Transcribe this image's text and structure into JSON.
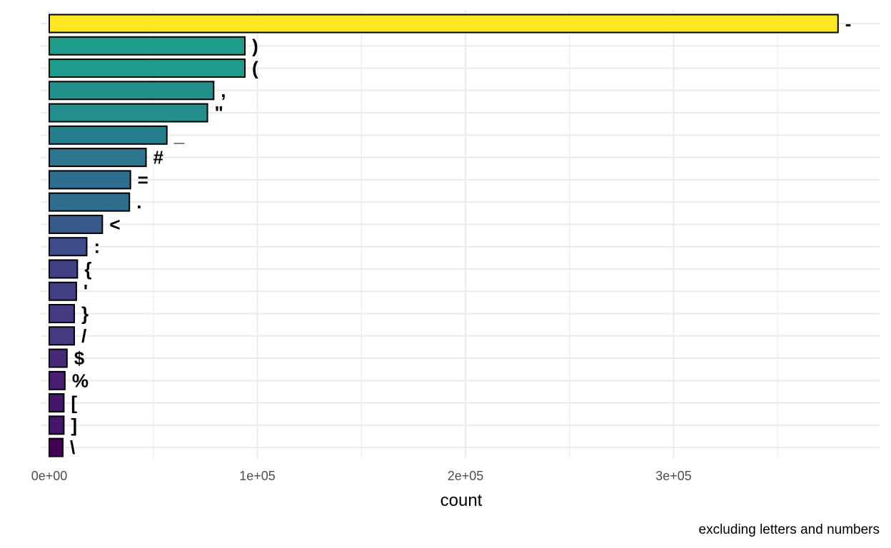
{
  "chart_data": {
    "type": "bar",
    "orientation": "horizontal",
    "categories": [
      "-",
      ")",
      "(",
      ",",
      "\"",
      "_",
      "#",
      "=",
      ".",
      "<",
      ":",
      "{",
      "'",
      "}",
      "/",
      "$",
      "%",
      "[",
      "]",
      "\\"
    ],
    "values": [
      379000,
      94000,
      94000,
      79000,
      76000,
      56500,
      46500,
      39000,
      38500,
      25500,
      18000,
      13500,
      13000,
      12000,
      12000,
      8500,
      7500,
      7000,
      7000,
      6500
    ],
    "xlabel": "count",
    "ylabel": "",
    "caption": "excluding letters and numbers",
    "xlim": [
      0,
      400000
    ],
    "x_ticks": [
      0,
      100000,
      200000,
      300000
    ],
    "x_tick_labels": [
      "0e+00",
      "1e+05",
      "2e+05",
      "3e+05"
    ],
    "color_scale": "viridis",
    "grid": true,
    "legend": "none"
  }
}
